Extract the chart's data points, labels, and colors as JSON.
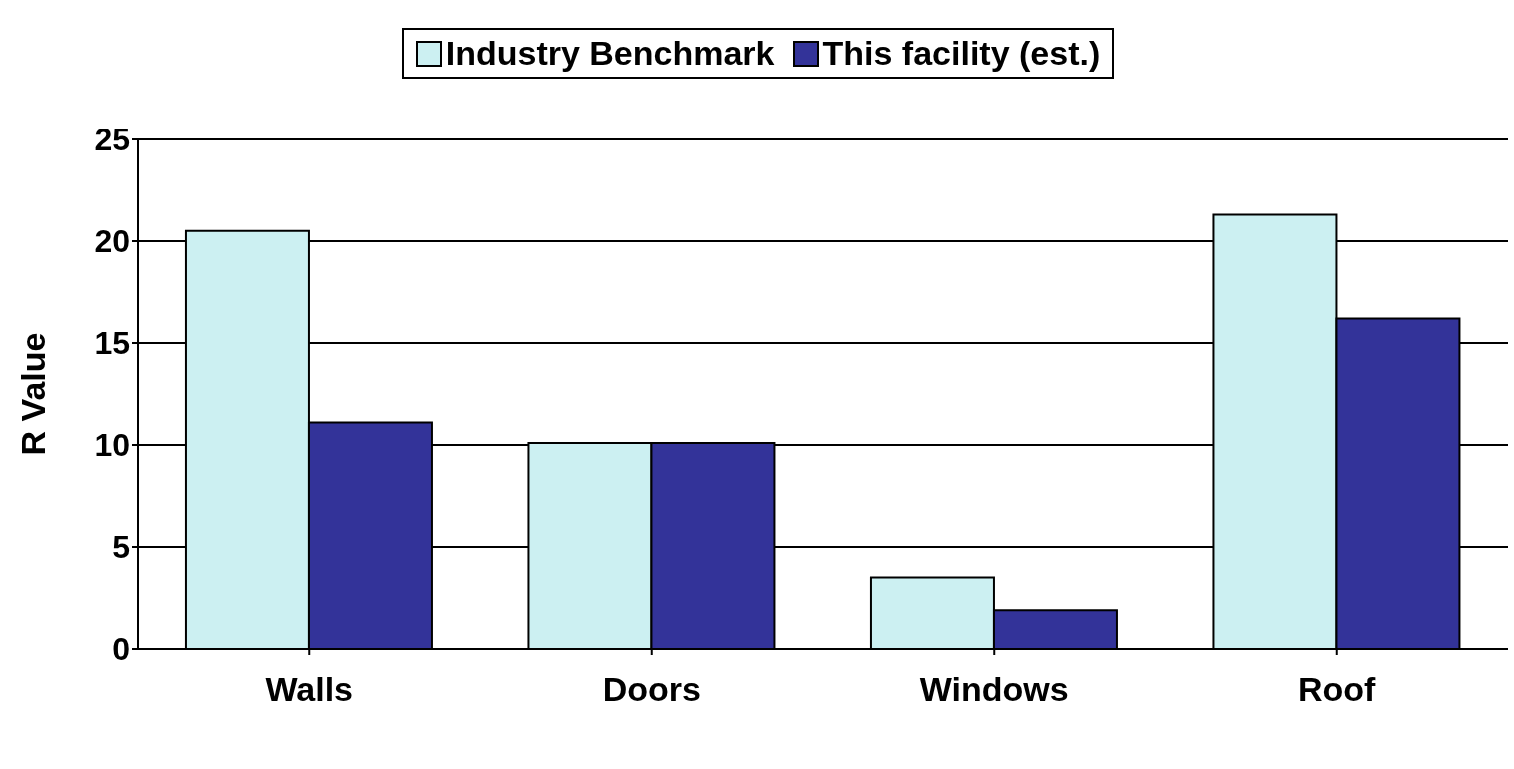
{
  "chart_data": {
    "type": "bar",
    "ylabel": "R Value",
    "categories": [
      "Walls",
      "Doors",
      "Windows",
      "Roof"
    ],
    "series": [
      {
        "name": "Industry Benchmark",
        "color": "#ccf0f2",
        "values": [
          20.5,
          10.1,
          3.5,
          21.3
        ]
      },
      {
        "name": "This facility (est.)",
        "color": "#333399",
        "values": [
          11.1,
          10.1,
          1.9,
          16.2
        ]
      }
    ],
    "ylim": [
      0,
      25
    ],
    "yticks": [
      0,
      5,
      10,
      15,
      20,
      25
    ],
    "grid": "y",
    "legend": "top"
  }
}
